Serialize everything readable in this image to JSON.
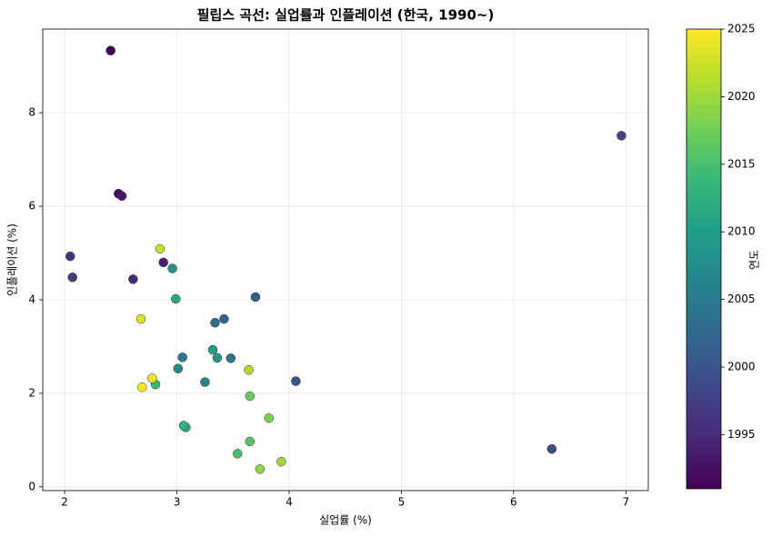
{
  "chart_data": {
    "type": "scatter",
    "title": "필립스 곡선: 실업률과 인플레이션 (한국, 1990~)",
    "x_label": "실업률 (%)",
    "y_label": "인플레이션 (%)",
    "x": [
      2.41,
      2.48,
      2.51,
      2.88,
      2.61,
      2.05,
      2.07,
      6.96,
      6.34,
      4.06,
      3.7,
      3.42,
      3.34,
      3.48,
      3.05,
      3.25,
      3.01,
      2.96,
      3.36,
      3.32,
      2.99,
      3.08,
      3.06,
      2.81,
      3.54,
      3.65,
      3.65,
      3.82,
      3.74,
      3.93,
      3.64,
      2.85,
      2.68,
      2.78,
      2.69
    ],
    "y": [
      9.33,
      6.27,
      6.22,
      4.8,
      4.44,
      4.93,
      4.48,
      7.51,
      0.81,
      2.26,
      4.06,
      3.59,
      3.51,
      2.75,
      2.77,
      2.24,
      2.53,
      4.67,
      2.76,
      2.93,
      4.02,
      1.27,
      1.31,
      2.19,
      0.71,
      0.97,
      1.94,
      1.47,
      0.38,
      0.54,
      2.5,
      5.09,
      3.59,
      2.32,
      2.13
    ],
    "color_values": [
      1991,
      1992,
      1993,
      1994,
      1995,
      1996,
      1997,
      1998,
      1999,
      2000,
      2001,
      2002,
      2003,
      2004,
      2005,
      2006,
      2007,
      2008,
      2009,
      2010,
      2011,
      2012,
      2013,
      2014,
      2015,
      2016,
      2017,
      2018,
      2019,
      2020,
      2021,
      2022,
      2023,
      2024,
      2025
    ],
    "colormap": "viridis",
    "xlim": [
      1.805,
      7.2
    ],
    "ylim": [
      -0.08,
      9.79
    ],
    "xticks": [
      2,
      3,
      4,
      5,
      6,
      7
    ],
    "yticks": [
      0,
      2,
      4,
      6,
      8
    ],
    "grid": true,
    "colorbar": {
      "label": "연도",
      "lim": [
        1991,
        2025
      ],
      "ticks": [
        1995,
        2000,
        2005,
        2010,
        2015,
        2020,
        2025
      ]
    }
  }
}
